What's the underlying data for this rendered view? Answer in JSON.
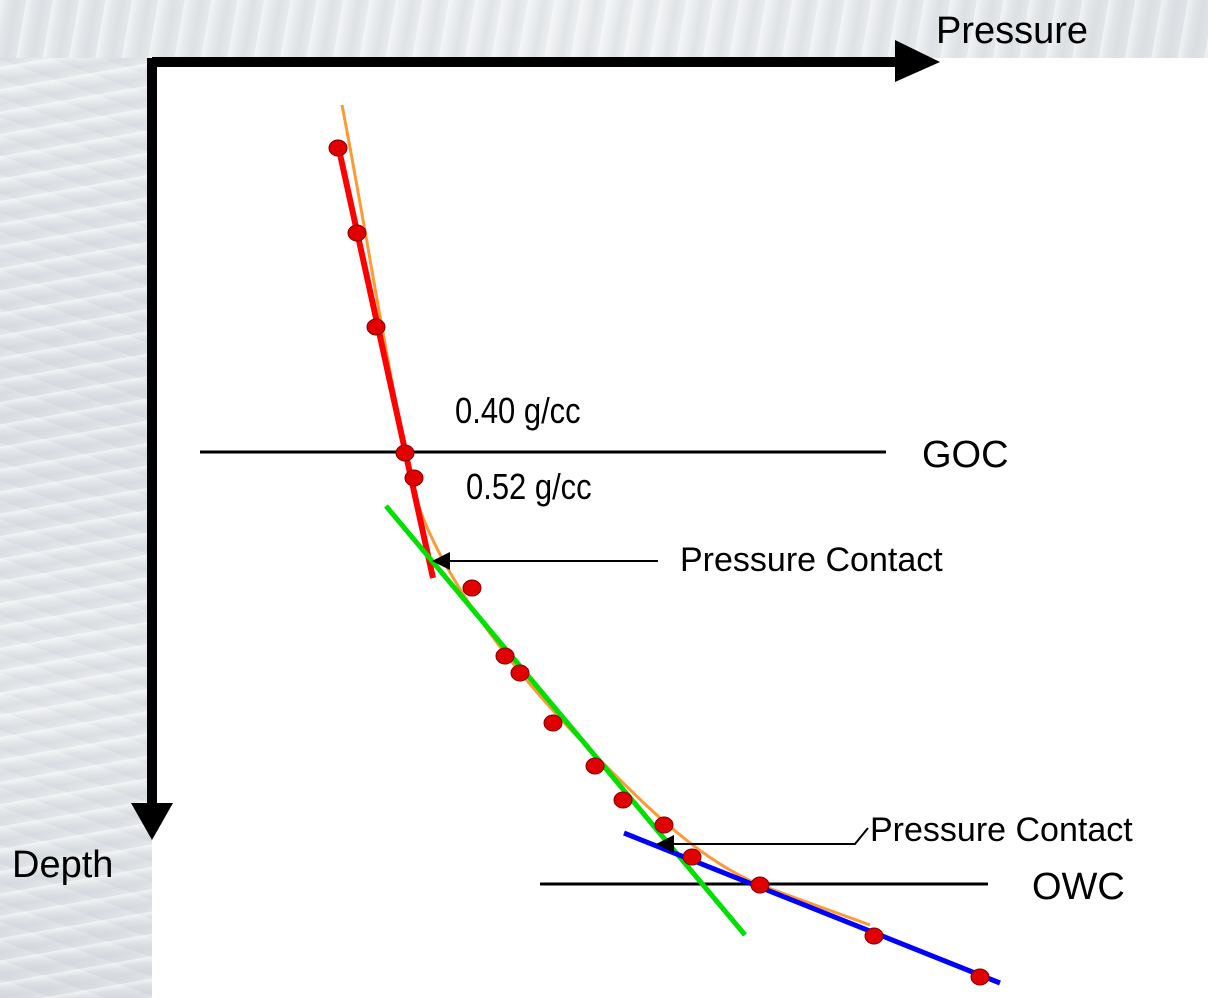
{
  "axes": {
    "x_label": "Pressure",
    "y_label": "Depth"
  },
  "contacts": {
    "goc_label": "GOC",
    "owc_label": "OWC"
  },
  "densities": {
    "gas": "0.40 g/cc",
    "oil": "0.52 g/cc"
  },
  "annotations": {
    "pressure_contact_1": "Pressure Contact",
    "pressure_contact_2": "Pressure Contact"
  },
  "colors": {
    "gas_gradient": "#ff0000",
    "oil_gradient": "#00e000",
    "water_gradient": "#0000ff",
    "fitted_curve": "#ff9933",
    "data_points": "#e00000",
    "axes": "#000000"
  }
}
